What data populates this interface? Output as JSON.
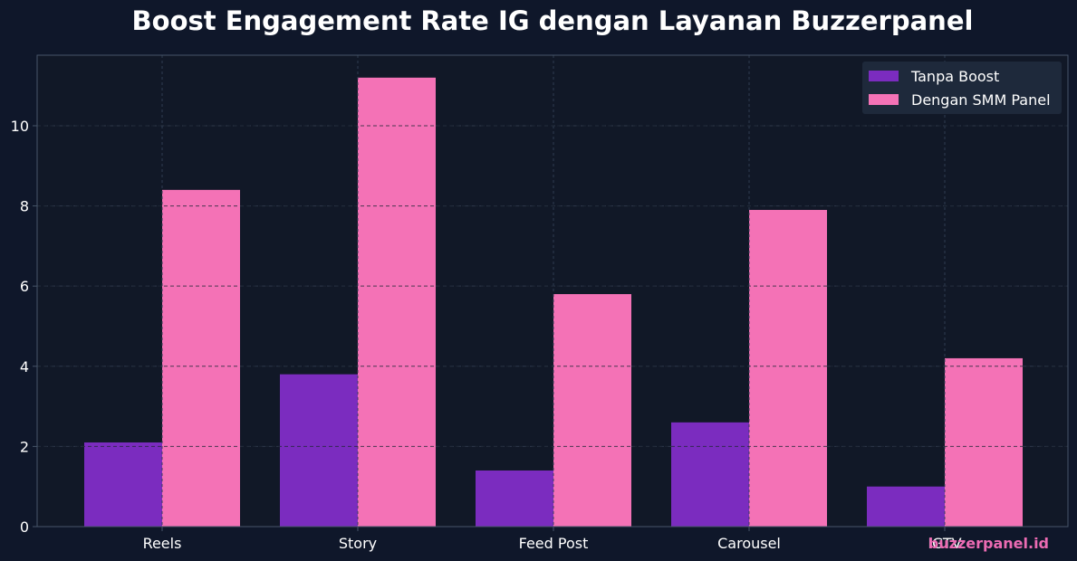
{
  "chart_data": {
    "type": "bar",
    "title": "Boost Engagement Rate IG dengan Layanan Buzzerpanel",
    "xlabel": "",
    "ylabel": "",
    "categories": [
      "Reels",
      "Story",
      "Feed Post",
      "Carousel",
      "IGTV"
    ],
    "series": [
      {
        "name": "Tanpa Boost",
        "values": [
          2.1,
          3.8,
          1.4,
          2.6,
          1.0
        ],
        "color": "#7b2cbf"
      },
      {
        "name": "Dengan SMM Panel",
        "values": [
          8.4,
          11.2,
          5.8,
          7.9,
          4.2
        ],
        "color": "#f472b6"
      }
    ],
    "ylim": [
      0,
      11.76
    ],
    "yticks": [
      0,
      2,
      4,
      6,
      8,
      10
    ],
    "grid": true,
    "legend_position": "top-right",
    "watermark": "buzzerpanel.id",
    "colors": {
      "background": "#0f172a",
      "plot_background": "#111827",
      "grid": "#64748b",
      "axis": "#475569",
      "text": "#ffffff",
      "legend_background": "#1e293b",
      "watermark": "#ec6bb3"
    }
  }
}
